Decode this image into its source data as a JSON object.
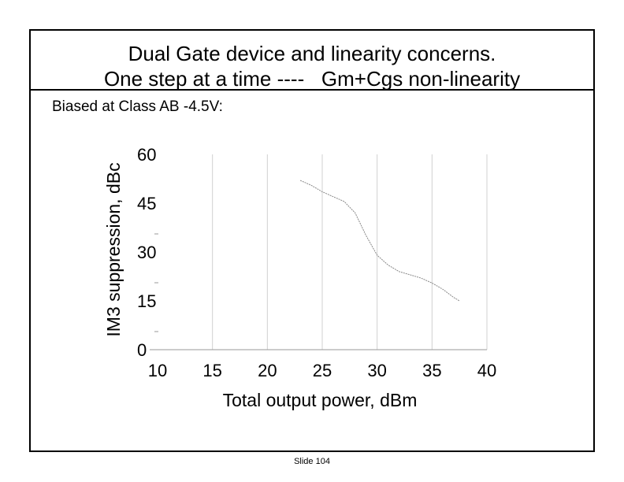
{
  "slide": {
    "title_line1": "Dual Gate device and linearity concerns.",
    "title_line2": "One step at a time ----   Gm+Cgs non-linearity",
    "subtitle": "Biased at Class AB -4.5V:",
    "slide_number": "Slide 104"
  },
  "colors": {
    "frame": "#000000",
    "gridlines": "#d0d0d0",
    "axis": "#999999",
    "curve": "#888888"
  },
  "chart_data": {
    "type": "line",
    "title": "",
    "xlabel": "Total output power, dBm",
    "ylabel": "IM3 suppression, dBc",
    "xlim": [
      10,
      40
    ],
    "ylim": [
      0,
      60
    ],
    "x_ticks": [
      10,
      15,
      20,
      25,
      30,
      35,
      40
    ],
    "y_ticks": [
      0,
      15,
      30,
      45,
      60
    ],
    "grid": "vertical",
    "series": [
      {
        "x": [
          23,
          24,
          25,
          26,
          27,
          28,
          29,
          30,
          31,
          32,
          33,
          34,
          35,
          36,
          37,
          37.5
        ],
        "values": [
          52,
          50.5,
          48.5,
          47,
          45.5,
          42,
          35,
          29,
          26,
          24,
          23,
          22,
          20.5,
          18.5,
          16,
          15
        ]
      }
    ]
  }
}
